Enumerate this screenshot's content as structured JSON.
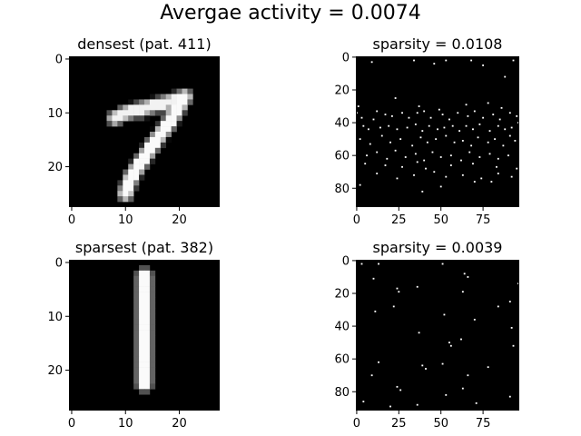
{
  "figure": {
    "suptitle": "Avergae activity = 0.0074"
  },
  "chart_data": [
    {
      "type": "heatmap",
      "title": "densest (pat. 411)",
      "grid_shape": [
        28,
        28
      ],
      "colormap": "gray",
      "xticks": [
        0,
        10,
        20
      ],
      "yticks": [
        0,
        10,
        20
      ],
      "xlim": [
        -0.5,
        27.5
      ],
      "ylim": [
        27.5,
        -0.5
      ],
      "strokes": [
        {
          "points": [
            [
              8,
              11
            ],
            [
              10,
              10
            ],
            [
              14,
              9
            ],
            [
              18,
              8
            ],
            [
              21,
              7
            ]
          ],
          "width": 1.6,
          "value": 0.95
        },
        {
          "points": [
            [
              13,
              10
            ],
            [
              15,
              9
            ],
            [
              17,
              9
            ]
          ],
          "width": 1.0,
          "value": 0.7
        },
        {
          "points": [
            [
              21,
              7
            ],
            [
              18,
              12
            ],
            [
              15,
              16
            ],
            [
              13,
              19
            ],
            [
              11,
              22
            ],
            [
              10,
              25
            ]
          ],
          "width": 1.7,
          "value": 0.98
        }
      ]
    },
    {
      "type": "heatmap",
      "title": "sparsity = 0.0108",
      "grid_shape": [
        92,
        97
      ],
      "colormap": "gray",
      "xticks": [
        0,
        25,
        50,
        75
      ],
      "yticks": [
        0,
        20,
        40,
        60,
        80
      ],
      "xlim": [
        -0.5,
        96.5
      ],
      "ylim": [
        91.5,
        -0.5
      ],
      "active_points": [
        [
          9,
          3
        ],
        [
          34,
          2
        ],
        [
          46,
          4
        ],
        [
          53,
          2
        ],
        [
          68,
          2
        ],
        [
          75,
          5
        ],
        [
          93,
          2
        ],
        [
          88,
          12
        ],
        [
          23,
          25
        ],
        [
          1,
          30
        ],
        [
          12,
          33
        ],
        [
          37,
          30
        ],
        [
          49,
          32
        ],
        [
          65,
          29
        ],
        [
          78,
          28
        ],
        [
          86,
          31
        ],
        [
          0,
          34
        ],
        [
          3,
          37
        ],
        [
          10,
          38
        ],
        [
          17,
          35
        ],
        [
          21,
          36
        ],
        [
          27,
          34
        ],
        [
          31,
          37
        ],
        [
          36,
          34
        ],
        [
          40,
          33
        ],
        [
          44,
          37
        ],
        [
          51,
          35
        ],
        [
          55,
          38
        ],
        [
          60,
          34
        ],
        [
          66,
          36
        ],
        [
          70,
          33
        ],
        [
          75,
          37
        ],
        [
          81,
          35
        ],
        [
          85,
          38
        ],
        [
          91,
          34
        ],
        [
          95,
          36
        ],
        [
          4,
          42
        ],
        [
          7,
          44
        ],
        [
          14,
          43
        ],
        [
          19,
          42
        ],
        [
          24,
          44
        ],
        [
          30,
          43
        ],
        [
          35,
          41
        ],
        [
          39,
          45
        ],
        [
          43,
          42
        ],
        [
          48,
          44
        ],
        [
          52,
          43
        ],
        [
          57,
          42
        ],
        [
          61,
          45
        ],
        [
          65,
          42
        ],
        [
          69,
          44
        ],
        [
          73,
          41
        ],
        [
          79,
          45
        ],
        [
          84,
          42
        ],
        [
          88,
          44
        ],
        [
          92,
          43
        ],
        [
          96,
          40
        ],
        [
          2,
          50
        ],
        [
          8,
          53
        ],
        [
          15,
          48
        ],
        [
          20,
          52
        ],
        [
          26,
          50
        ],
        [
          33,
          54
        ],
        [
          38,
          49
        ],
        [
          42,
          52
        ],
        [
          47,
          50
        ],
        [
          53,
          48
        ],
        [
          58,
          52
        ],
        [
          63,
          51
        ],
        [
          68,
          54
        ],
        [
          72,
          49
        ],
        [
          78,
          52
        ],
        [
          82,
          50
        ],
        [
          87,
          54
        ],
        [
          91,
          48
        ],
        [
          94,
          51
        ],
        [
          6,
          60
        ],
        [
          12,
          58
        ],
        [
          18,
          62
        ],
        [
          23,
          57
        ],
        [
          29,
          61
        ],
        [
          35,
          59
        ],
        [
          40,
          63
        ],
        [
          45,
          58
        ],
        [
          50,
          61
        ],
        [
          56,
          60
        ],
        [
          62,
          63
        ],
        [
          67,
          58
        ],
        [
          73,
          61
        ],
        [
          79,
          59
        ],
        [
          84,
          62
        ],
        [
          90,
          60
        ],
        [
          5,
          65
        ],
        [
          17,
          66
        ],
        [
          27,
          67
        ],
        [
          36,
          64
        ],
        [
          41,
          68
        ],
        [
          56,
          66
        ],
        [
          69,
          65
        ],
        [
          83,
          67
        ],
        [
          95,
          68
        ],
        [
          12,
          71
        ],
        [
          24,
          74
        ],
        [
          34,
          72
        ],
        [
          46,
          70
        ],
        [
          53,
          73
        ],
        [
          63,
          72
        ],
        [
          74,
          74
        ],
        [
          84,
          71
        ],
        [
          92,
          73
        ],
        [
          2,
          78
        ],
        [
          39,
          82
        ],
        [
          50,
          79
        ],
        [
          70,
          76
        ],
        [
          80,
          76
        ]
      ]
    },
    {
      "type": "heatmap",
      "title": "sparsest (pat. 382)",
      "grid_shape": [
        28,
        28
      ],
      "colormap": "gray",
      "xticks": [
        0,
        10,
        20
      ],
      "yticks": [
        0,
        10,
        20
      ],
      "xlim": [
        -0.5,
        27.5
      ],
      "ylim": [
        27.5,
        -0.5
      ],
      "strokes": [
        {
          "points": [
            [
              13.5,
              2.5
            ],
            [
              13.5,
              22.5
            ]
          ],
          "width": 1.9,
          "value": 0.98
        }
      ]
    },
    {
      "type": "heatmap",
      "title": "sparsity = 0.0039",
      "grid_shape": [
        92,
        97
      ],
      "colormap": "gray",
      "xticks": [
        0,
        25,
        50,
        75
      ],
      "yticks": [
        0,
        20,
        40,
        60,
        80
      ],
      "xlim": [
        -0.5,
        96.5
      ],
      "ylim": [
        91.5,
        -0.5
      ],
      "active_points": [
        [
          3,
          2
        ],
        [
          13,
          2
        ],
        [
          51,
          2
        ],
        [
          10,
          11
        ],
        [
          24,
          17
        ],
        [
          25,
          19
        ],
        [
          36,
          16
        ],
        [
          64,
          8
        ],
        [
          66,
          10
        ],
        [
          63,
          19
        ],
        [
          96,
          14
        ],
        [
          11,
          31
        ],
        [
          22,
          28
        ],
        [
          52,
          33
        ],
        [
          84,
          28
        ],
        [
          91,
          25
        ],
        [
          37,
          44
        ],
        [
          70,
          36
        ],
        [
          92,
          41
        ],
        [
          55,
          50
        ],
        [
          56,
          52
        ],
        [
          62,
          48
        ],
        [
          93,
          52
        ],
        [
          13,
          62
        ],
        [
          39,
          64
        ],
        [
          41,
          66
        ],
        [
          51,
          63
        ],
        [
          78,
          65
        ],
        [
          9,
          70
        ],
        [
          66,
          70
        ],
        [
          24,
          77
        ],
        [
          26,
          79
        ],
        [
          53,
          82
        ],
        [
          63,
          78
        ],
        [
          91,
          83
        ],
        [
          4,
          86
        ],
        [
          20,
          89
        ],
        [
          36,
          88
        ],
        [
          71,
          87
        ]
      ]
    }
  ]
}
